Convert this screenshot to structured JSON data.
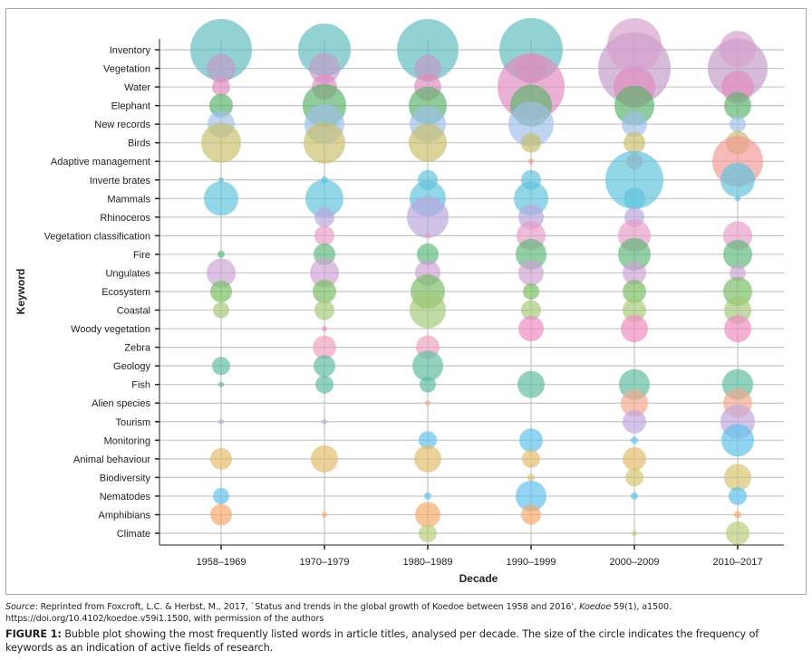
{
  "chart_data": {
    "type": "scatter",
    "subtype": "bubble",
    "title": "",
    "xlabel": "Decade",
    "ylabel": "Keyword",
    "grid": true,
    "legend": "none",
    "categories": [
      "1958–1969",
      "1970–1979",
      "1980–1989",
      "1990–1999",
      "2000–2009",
      "2010–2017"
    ],
    "keywords": [
      "Inventory",
      "Vegetation",
      "Water",
      "Elephant",
      "New records",
      "Birds",
      "Adaptive management",
      "Inverte brates",
      "Mammals",
      "Rhinoceros",
      "Vegetation classification",
      "Fire",
      "Ungulates",
      "Ecosystem",
      "Coastal",
      "Woody vegetation",
      "Zebra",
      "Geology",
      "Fish",
      "Alien species",
      "Tourism",
      "Monitoring",
      "Animal behaviour",
      "Biodiversity",
      "Nematodes",
      "Amphibians",
      "Climate"
    ],
    "size_note": "relative bubble size (frequency of keyword), estimated on a 0–40 scale",
    "series": [
      {
        "name": "Inventory",
        "color": "#5fbcc0",
        "values": [
          34,
          29,
          34,
          35,
          0,
          0
        ]
      },
      {
        "name": "Vegetation",
        "color": "#c39bc9",
        "values": [
          16,
          17,
          15,
          17,
          40,
          33
        ]
      },
      {
        "name": "Water",
        "color": "#e28cc0",
        "values": [
          10,
          14,
          15,
          37,
          23,
          18
        ]
      },
      {
        "name": "Elephant",
        "color": "#5bb26b",
        "values": [
          13,
          24,
          21,
          23,
          22,
          15
        ]
      },
      {
        "name": "New records",
        "color": "#9fc0ea",
        "values": [
          15,
          22,
          20,
          25,
          14,
          9
        ]
      },
      {
        "name": "Birds",
        "color": "#c8c06a",
        "values": [
          22,
          23,
          21,
          11,
          12,
          13
        ]
      },
      {
        "name": "Adaptive management",
        "color": "#f29a96",
        "values": [
          0,
          0,
          0,
          3,
          9,
          28
        ]
      },
      {
        "name": "Inverte brates",
        "color": "#5ec3dd",
        "values": [
          3,
          4,
          11,
          11,
          32,
          19
        ]
      },
      {
        "name": "Mammals",
        "color": "#5ec3dd",
        "values": [
          19,
          21,
          20,
          19,
          12,
          3
        ]
      },
      {
        "name": "Rhinoceros",
        "color": "#b9a6dc",
        "values": [
          0,
          11,
          23,
          14,
          11,
          0
        ]
      },
      {
        "name": "Vegetation classification",
        "color": "#e89cc9",
        "values": [
          0,
          11,
          3,
          16,
          18,
          16
        ]
      },
      {
        "name": "Fire",
        "color": "#5fb87a",
        "values": [
          4,
          12,
          12,
          17,
          18,
          16
        ]
      },
      {
        "name": "Ungulates",
        "color": "#cfa2d5",
        "values": [
          16,
          16,
          14,
          14,
          13,
          9
        ]
      },
      {
        "name": "Ecosystem",
        "color": "#78bd62",
        "values": [
          12,
          13,
          19,
          9,
          13,
          16
        ]
      },
      {
        "name": "Coastal",
        "color": "#a5c978",
        "values": [
          9,
          11,
          20,
          11,
          13,
          15
        ]
      },
      {
        "name": "Woody vegetation",
        "color": "#ef8bbe",
        "values": [
          0,
          3,
          0,
          14,
          15,
          15
        ]
      },
      {
        "name": "Zebra",
        "color": "#f09fc4",
        "values": [
          0,
          13,
          13,
          0,
          0,
          0
        ]
      },
      {
        "name": "Geology",
        "color": "#5dbca0",
        "values": [
          10,
          12,
          17,
          0,
          0,
          0
        ]
      },
      {
        "name": "Fish",
        "color": "#5dbca0",
        "values": [
          3,
          10,
          9,
          15,
          17,
          17
        ]
      },
      {
        "name": "Alien species",
        "color": "#f4a88c",
        "values": [
          0,
          0,
          3,
          0,
          15,
          16
        ]
      },
      {
        "name": "Tourism",
        "color": "#c0a7db",
        "values": [
          3,
          3,
          0,
          0,
          13,
          19
        ]
      },
      {
        "name": "Monitoring",
        "color": "#5fc1ec",
        "values": [
          0,
          0,
          10,
          13,
          4,
          18
        ]
      },
      {
        "name": "Animal behaviour",
        "color": "#e5bb6c",
        "values": [
          12,
          15,
          15,
          10,
          13,
          0
        ]
      },
      {
        "name": "Biodiversity",
        "color": "#d6c46e",
        "values": [
          0,
          0,
          0,
          4,
          10,
          15
        ]
      },
      {
        "name": "Nematodes",
        "color": "#5fc1ec",
        "values": [
          9,
          0,
          4,
          17,
          4,
          10
        ]
      },
      {
        "name": "Amphibians",
        "color": "#f6a868",
        "values": [
          12,
          3,
          14,
          11,
          0,
          4
        ]
      },
      {
        "name": "Climate",
        "color": "#b8cc78",
        "values": [
          0,
          0,
          10,
          0,
          3,
          13
        ]
      }
    ]
  },
  "caption": {
    "source_label": "Source",
    "source_text_1": ": Reprinted from Foxcroft, L.C. & Herbst, M., 2017, `Status and trends in the global growth of Koedoe between 1958 and 2016’, ",
    "source_journal": "Koedoe",
    "source_text_2": " 59(1), a1500. https://doi.org/10.4102/koedoe.v59i1.1500, with permission of the authors",
    "figure_label": "FIGURE 1:",
    "figure_text": " Bubble plot showing the most frequently listed words in article titles, analysed per decade. The size of the circle indicates the frequency of keywords as an indication of active fields of research."
  }
}
